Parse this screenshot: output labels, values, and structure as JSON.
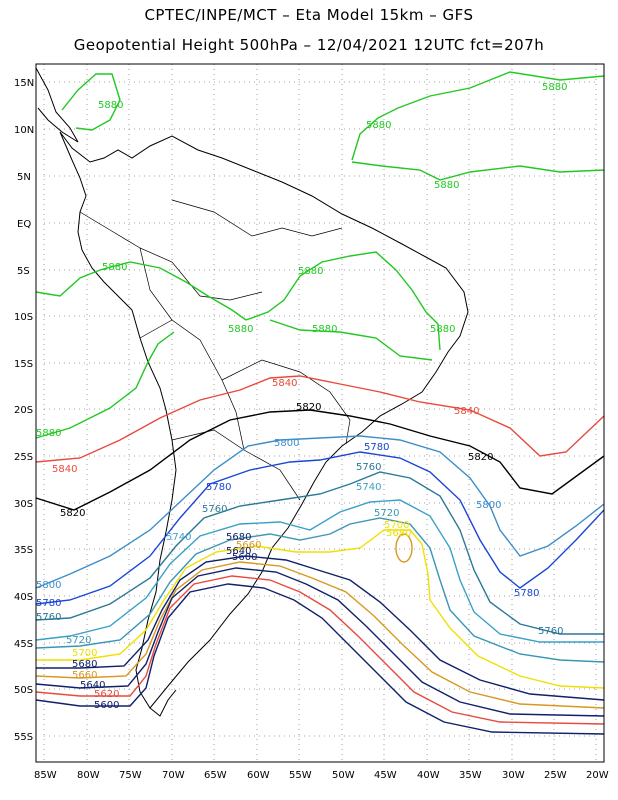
{
  "title_line1": "CPTEC/INPE/MCT –  Eta Model 15km – GFS",
  "title_line2": "Geopotential Height 500hPa – 12/04/2021 12UTC fct=207h",
  "lat_labels": [
    "15N",
    "10N",
    "5N",
    "EQ",
    "5S",
    "10S",
    "15S",
    "20S",
    "25S",
    "30S",
    "35S",
    "40S",
    "45S",
    "50S",
    "55S"
  ],
  "lon_labels": [
    "85W",
    "80W",
    "75W",
    "70W",
    "65W",
    "60W",
    "55W",
    "50W",
    "45W",
    "40W",
    "35W",
    "30W",
    "25W",
    "20W"
  ],
  "colors": {
    "c5880": "#22c822",
    "c5840": "#e84a3c",
    "c5820": "#000000",
    "c5800": "#3c8ec8",
    "c5780": "#1a46d6",
    "c5760": "#2a7898",
    "c5740": "#3aa0c8",
    "c5720": "#3a96b4",
    "c5700": "#f0e000",
    "c5660": "#d89820",
    "c5640": "#10206a",
    "c5620": "#e84a3c",
    "c5600": "#10206a",
    "land": "#000000",
    "grid": "#888888"
  },
  "contour_labels": [
    {
      "text": "5880",
      "color": "c5880"
    },
    {
      "text": "5880",
      "color": "c5880"
    },
    {
      "text": "5880",
      "color": "c5880"
    },
    {
      "text": "5880",
      "color": "c5880"
    },
    {
      "text": "5880",
      "color": "c5880"
    },
    {
      "text": "5880",
      "color": "c5880"
    },
    {
      "text": "5880",
      "color": "c5880"
    },
    {
      "text": "5880",
      "color": "c5880"
    },
    {
      "text": "5880",
      "color": "c5880"
    },
    {
      "text": "5880",
      "color": "c5880"
    },
    {
      "text": "5840",
      "color": "c5840"
    },
    {
      "text": "5840",
      "color": "c5840"
    },
    {
      "text": "5840",
      "color": "c5840"
    },
    {
      "text": "5820",
      "color": "c5820"
    },
    {
      "text": "5820",
      "color": "c5820"
    },
    {
      "text": "5820",
      "color": "c5820"
    },
    {
      "text": "5800",
      "color": "c5800"
    },
    {
      "text": "5800",
      "color": "c5800"
    },
    {
      "text": "5800",
      "color": "c5800"
    },
    {
      "text": "5780",
      "color": "c5780"
    },
    {
      "text": "5780",
      "color": "c5780"
    },
    {
      "text": "5780",
      "color": "c5780"
    },
    {
      "text": "5780",
      "color": "c5780"
    },
    {
      "text": "5760",
      "color": "c5760"
    },
    {
      "text": "5760",
      "color": "c5760"
    },
    {
      "text": "5760",
      "color": "c5760"
    },
    {
      "text": "5760",
      "color": "c5760"
    },
    {
      "text": "5740",
      "color": "c5740"
    },
    {
      "text": "5740",
      "color": "c5740"
    },
    {
      "text": "5720",
      "color": "c5720"
    },
    {
      "text": "5720",
      "color": "c5720"
    },
    {
      "text": "5700",
      "color": "c5700"
    },
    {
      "text": "5700",
      "color": "c5700"
    },
    {
      "text": "5680",
      "color": "c5700"
    },
    {
      "text": "5680",
      "color": "c5600"
    },
    {
      "text": "5680",
      "color": "c5600"
    },
    {
      "text": "5660",
      "color": "c5660"
    },
    {
      "text": "5660",
      "color": "c5660"
    },
    {
      "text": "5640",
      "color": "c5640"
    },
    {
      "text": "5640",
      "color": "c5640"
    },
    {
      "text": "5620",
      "color": "c5620"
    },
    {
      "text": "5600",
      "color": "c5600"
    },
    {
      "text": "5600",
      "color": "c5600"
    }
  ]
}
